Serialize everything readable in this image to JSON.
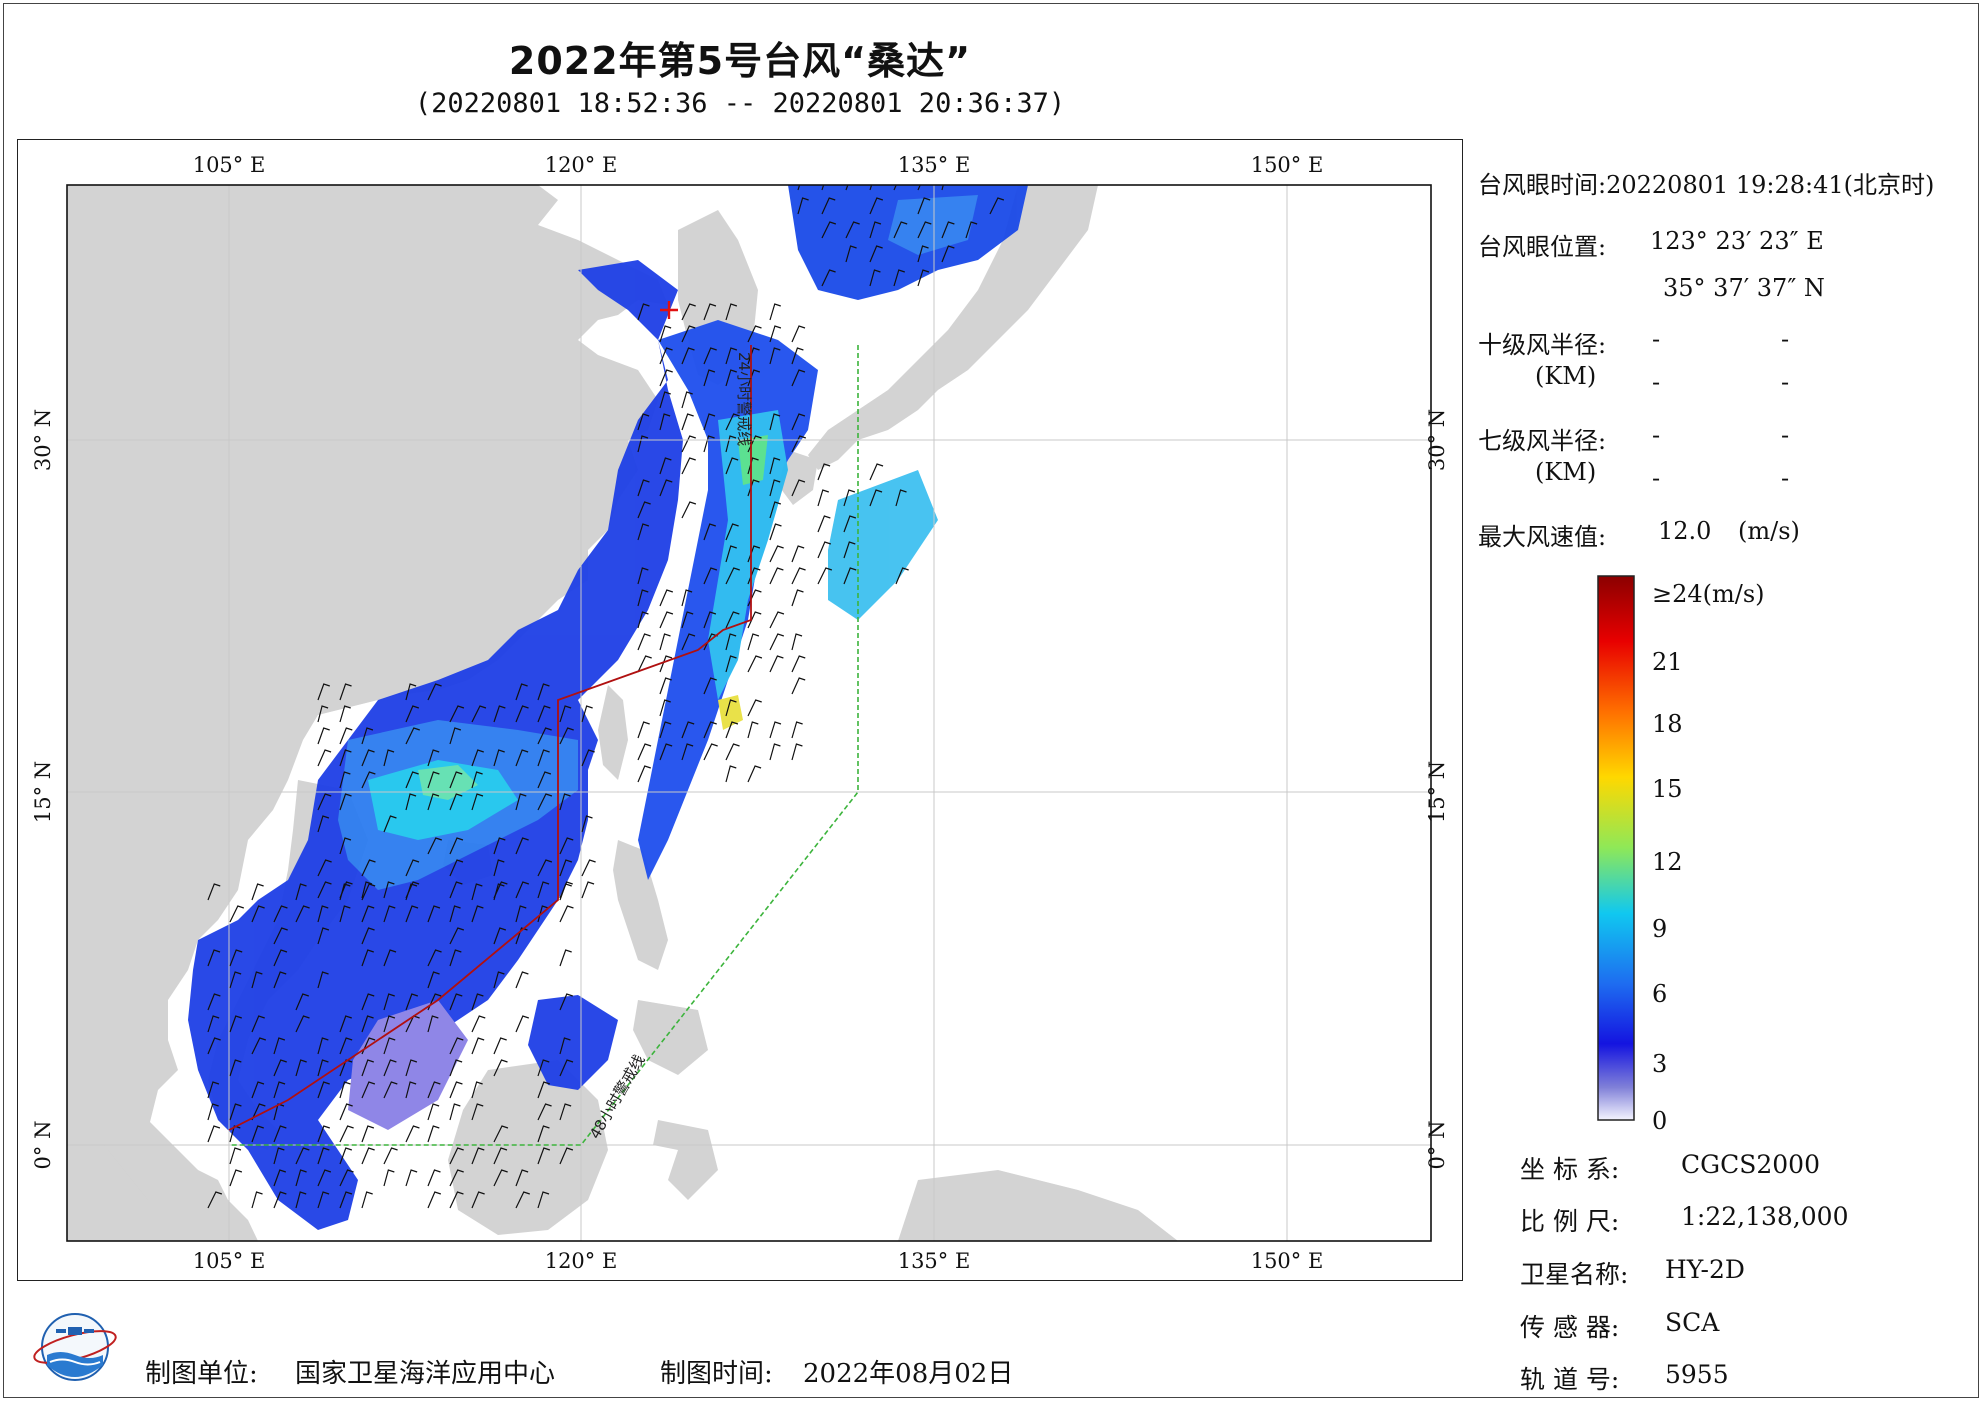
{
  "header": {
    "title": "2022年第5号台风“桑达”",
    "subtitle": "(20220801 18:52:36 -- 20220801 20:36:37)"
  },
  "map": {
    "lon_ticks": [
      "105° E",
      "120° E",
      "135° E",
      "150° E"
    ],
    "lat_ticks": [
      "30° N",
      "15° N",
      "0° N"
    ],
    "warning_24h_label": "24小时警戒线",
    "warning_48h_label": "48小时警戒线",
    "typhoon_eye_marker_color": "#e01010",
    "warning_24h_color": "#b01010",
    "warning_48h_color": "#3cb43c",
    "land_color": "#d4d4d4",
    "ocean_color": "#ffffff",
    "wind_unit": "m/s"
  },
  "info": {
    "eye_time_label": "台风眼时间:",
    "eye_time_value": "20220801 19:28:41(北京时)",
    "eye_position_label": "台风眼位置:",
    "eye_lon": "123° 23′ 23″ E",
    "eye_lat": "35° 37′ 37″ N",
    "r10_label": "十级风半径:",
    "r10_unit": "(KM)",
    "r10_values": [
      "-",
      "-",
      "-",
      "-"
    ],
    "r7_label": "七级风半径:",
    "r7_unit": "(KM)",
    "r7_values": [
      "-",
      "-",
      "-",
      "-"
    ],
    "max_wind_label": "最大风速值:",
    "max_wind_value": "12.0",
    "max_wind_unit": "(m/s)"
  },
  "colorbar": {
    "top_label": "≥24(m/s)",
    "ticks": [
      "21",
      "18",
      "15",
      "12",
      "9",
      "6",
      "3",
      "0"
    ]
  },
  "meta": {
    "crs_label": "坐 标 系:",
    "crs_value": "CGCS2000",
    "scale_label": "比 例 尺:",
    "scale_value": "1:22,138,000",
    "satellite_label": "卫星名称:",
    "satellite_value": "HY-2D",
    "sensor_label": "传 感 器:",
    "sensor_value": "SCA",
    "orbit_label": "轨 道 号:",
    "orbit_value": "5955"
  },
  "footer": {
    "unit_label": "制图单位:",
    "unit_value": "国家卫星海洋应用中心",
    "time_label": "制图时间:",
    "time_value": "2022年08月02日"
  }
}
